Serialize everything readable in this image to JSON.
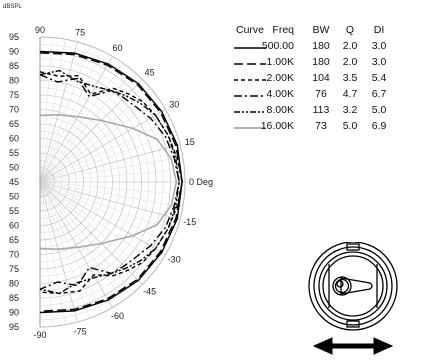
{
  "chart_data": {
    "type": "polar",
    "unit_label": "dBSPL",
    "r_range": [
      45,
      95
    ],
    "r_ticks_upper": [
      "95",
      "90",
      "85",
      "80",
      "75",
      "70",
      "65",
      "60",
      "55",
      "50",
      "45"
    ],
    "r_ticks_lower": [
      "50",
      "55",
      "60",
      "65",
      "70",
      "75",
      "80",
      "85",
      "90",
      "95"
    ],
    "angle_labels": [
      "90",
      "75",
      "60",
      "45",
      "30",
      "15",
      "0 Deg",
      "-15",
      "-30",
      "-45",
      "-60",
      "-75",
      "-90"
    ],
    "legend_headers": {
      "curve": "Curve",
      "freq": "Freq",
      "bw": "BW",
      "q": "Q",
      "di": "DI"
    },
    "series": [
      {
        "name": "500.00",
        "bw": "180",
        "q": "2.0",
        "di": "3.0",
        "dash": "solid",
        "color": "#000000",
        "angles": [
          90,
          75,
          60,
          45,
          30,
          15,
          0,
          -15,
          -30,
          -45,
          -60,
          -75,
          -90
        ],
        "values": [
          90,
          91,
          92,
          93,
          93.5,
          94,
          94,
          94,
          93.5,
          93,
          92,
          91,
          90
        ]
      },
      {
        "name": "1.00K",
        "bw": "180",
        "q": "2.0",
        "di": "3.0",
        "dash": "long",
        "color": "#000000",
        "angles": [
          90,
          75,
          60,
          45,
          30,
          15,
          0,
          -15,
          -30,
          -45,
          -60,
          -75,
          -90
        ],
        "values": [
          89.5,
          90.5,
          91.5,
          92.5,
          93,
          93.5,
          94,
          93.5,
          93,
          92.5,
          91.5,
          90.5,
          89.5
        ]
      },
      {
        "name": "2.00K",
        "bw": "104",
        "q": "3.5",
        "di": "5.4",
        "dash": "short",
        "color": "#000000",
        "angles": [
          90,
          80,
          70,
          60,
          52,
          45,
          38,
          30,
          20,
          10,
          0,
          -10,
          -20,
          -30,
          -38,
          -45,
          -52,
          -60,
          -70,
          -80,
          -90
        ],
        "values": [
          83,
          82,
          84,
          80,
          86,
          88,
          90,
          91,
          92,
          93,
          94,
          93,
          92,
          91,
          90,
          88,
          86,
          82,
          85,
          84,
          83
        ]
      },
      {
        "name": "4.00K",
        "bw": "76",
        "q": "4.7",
        "di": "6.7",
        "dash": "dashdot",
        "color": "#000000",
        "angles": [
          90,
          80,
          70,
          60,
          52,
          45,
          38,
          30,
          20,
          10,
          0,
          -10,
          -20,
          -30,
          -38,
          -45,
          -52,
          -60,
          -70,
          -80,
          -90
        ],
        "values": [
          82,
          80,
          83,
          79,
          85,
          86,
          87,
          89,
          91,
          92,
          93,
          92,
          91,
          89,
          87,
          86,
          85,
          79,
          83,
          80,
          82
        ]
      },
      {
        "name": "8.00K",
        "bw": "113",
        "q": "3.2",
        "di": "5.0",
        "dash": "dashdotdot",
        "color": "#000000",
        "angles": [
          90,
          80,
          70,
          60,
          52,
          45,
          38,
          30,
          20,
          10,
          0,
          -10,
          -20,
          -30,
          -38,
          -45,
          -52,
          -60,
          -70,
          -80,
          -90
        ],
        "values": [
          82,
          84,
          82,
          83,
          85,
          87,
          89,
          91,
          92,
          92.5,
          93,
          92.5,
          92,
          91,
          89,
          87,
          85,
          83,
          82,
          84,
          82
        ]
      },
      {
        "name": "16.00K",
        "bw": "73",
        "q": "5.0",
        "di": "6.9",
        "dash": "solid",
        "color": "#a8a8a8",
        "angles": [
          90,
          75,
          60,
          45,
          30,
          20,
          10,
          0,
          -10,
          -20,
          -30,
          -45,
          -60,
          -75,
          -90
        ],
        "values": [
          68,
          69,
          71,
          75,
          82,
          88,
          91,
          92,
          91,
          88,
          82,
          75,
          71,
          69,
          68
        ]
      }
    ]
  }
}
